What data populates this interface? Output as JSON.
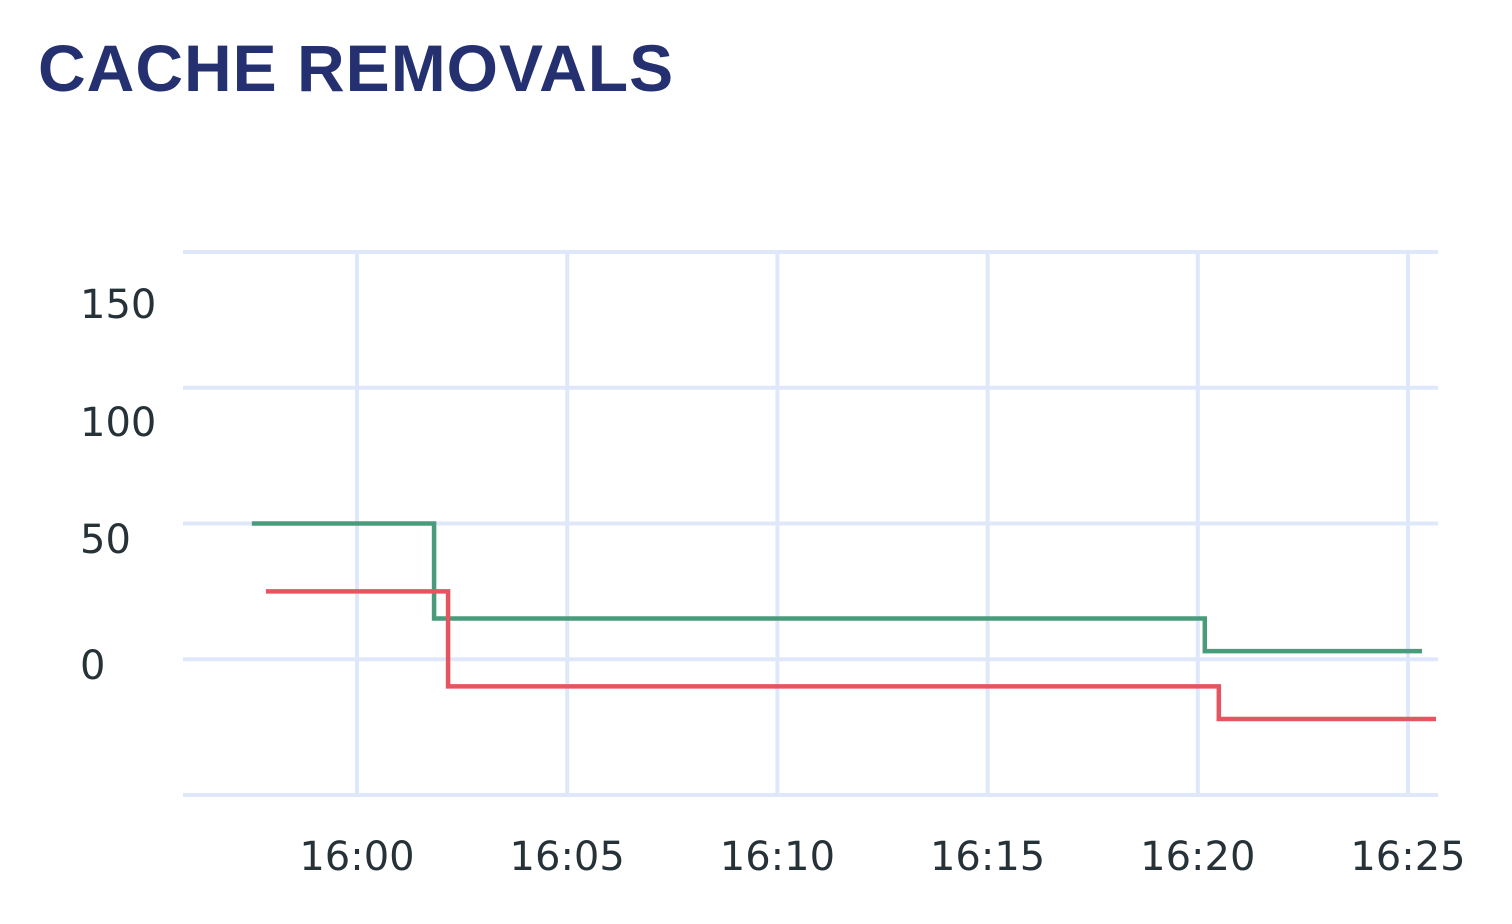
{
  "title": "CACHE REMOVALS",
  "colors": {
    "grid": "#dfe8fb",
    "series_green": "#4a9b7b",
    "series_red": "#e5555f",
    "title": "#243070",
    "ticks": "#263238"
  },
  "chart_data": {
    "type": "line",
    "step": "hv",
    "title": "CACHE REMOVALS",
    "xlabel": "",
    "ylabel": "",
    "x_tick_labels": [
      "16:00",
      "16:05",
      "16:10",
      "16:15",
      "16:20",
      "16:25"
    ],
    "y_tick_labels": [
      "150",
      "100",
      "50",
      "0"
    ],
    "ylim": [
      -50,
      150
    ],
    "xlim": [
      "15:56",
      "16:25:40"
    ],
    "grid": true,
    "series": [
      {
        "color": "#4a9b7b",
        "x": [
          "15:57:30",
          "16:01:50",
          "16:20:10",
          "16:25:20"
        ],
        "y": [
          50,
          15,
          3,
          3
        ]
      },
      {
        "color": "#e5555f",
        "x": [
          "15:57:50",
          "16:02:10",
          "16:20:30",
          "16:25:40"
        ],
        "y": [
          25,
          -10,
          -22,
          -22
        ]
      }
    ]
  }
}
